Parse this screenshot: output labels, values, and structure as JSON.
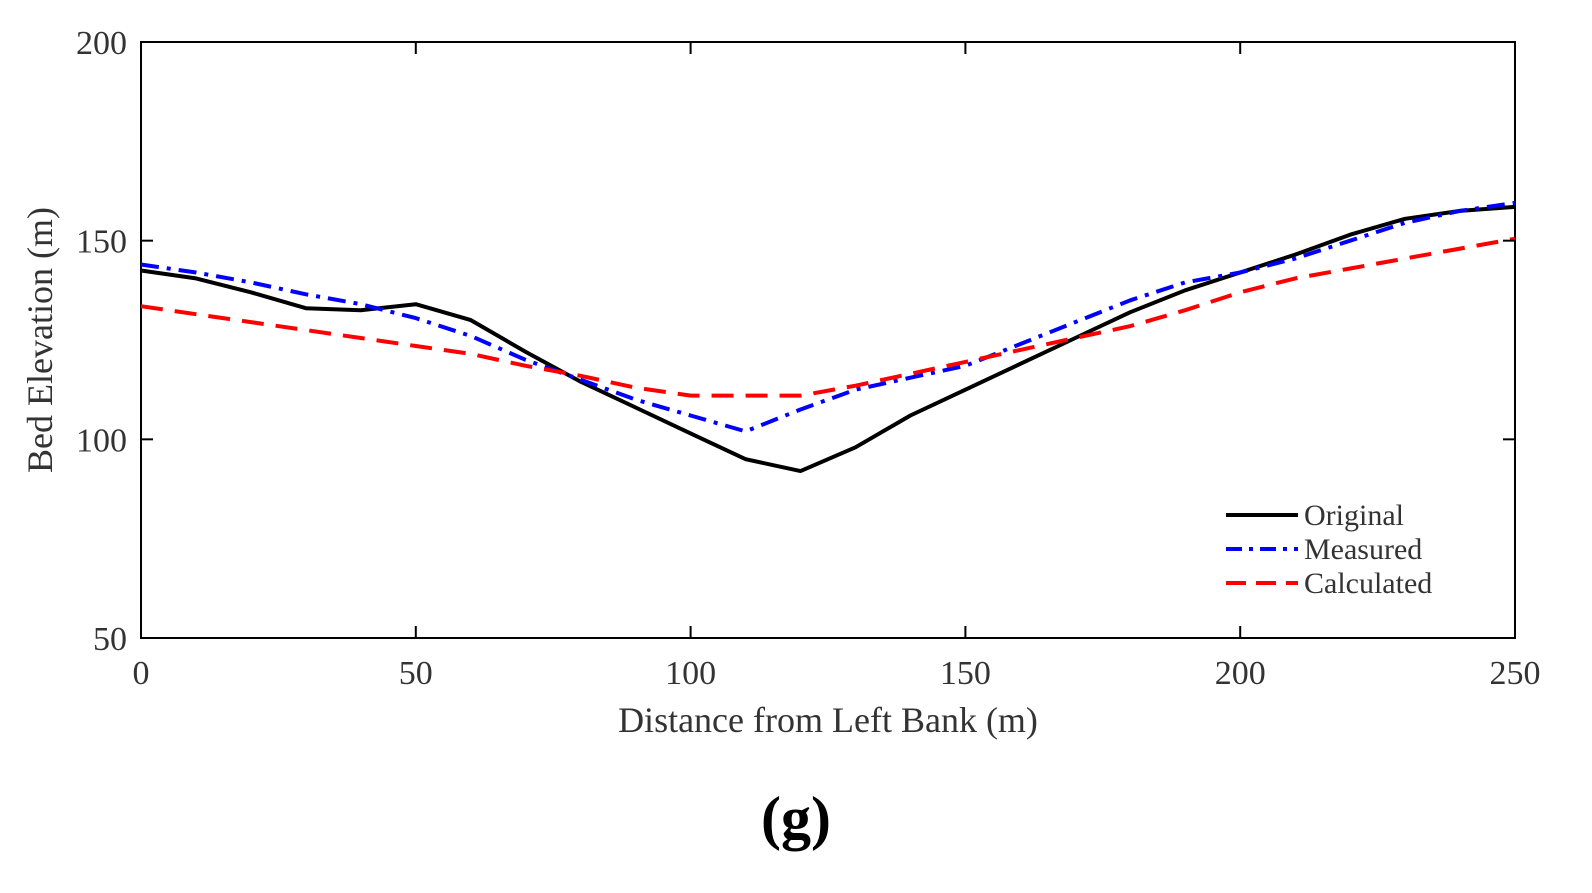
{
  "panel_label": "(g)",
  "chart_data": {
    "type": "line",
    "title": "",
    "xlabel": "Distance from Left Bank (m)",
    "ylabel": "Bed Elevation (m)",
    "xlim": [
      0,
      250
    ],
    "ylim": [
      50,
      200
    ],
    "xticks": [
      0,
      50,
      100,
      150,
      200,
      250
    ],
    "yticks": [
      50,
      100,
      150,
      200
    ],
    "grid": false,
    "legend_position": "lower-right",
    "series": [
      {
        "name": "Original",
        "color": "#000000",
        "style": "solid",
        "x": [
          0,
          10,
          20,
          30,
          40,
          50,
          60,
          70,
          80,
          90,
          100,
          110,
          120,
          130,
          140,
          150,
          160,
          170,
          180,
          190,
          200,
          210,
          220,
          230,
          240,
          250
        ],
        "y": [
          142.5,
          140.5,
          137,
          133,
          132.5,
          134,
          130,
          122,
          114.5,
          108,
          101.5,
          95,
          92,
          98,
          106,
          112.5,
          119,
          125.5,
          132,
          137.5,
          142,
          146.5,
          151.5,
          155.5,
          157.5,
          158.5
        ]
      },
      {
        "name": "Measured",
        "color": "#0000ff",
        "style": "dashdot",
        "x": [
          0,
          10,
          20,
          30,
          40,
          50,
          60,
          70,
          80,
          90,
          100,
          110,
          120,
          130,
          140,
          150,
          160,
          170,
          180,
          190,
          200,
          210,
          220,
          230,
          240,
          250
        ],
        "y": [
          144,
          142,
          139.5,
          136.5,
          134,
          130.5,
          126,
          120,
          115,
          110,
          106,
          102,
          107.5,
          112.5,
          115.5,
          118.5,
          124,
          129.5,
          135,
          139.5,
          142,
          145.5,
          150,
          154.5,
          157.5,
          159.5
        ]
      },
      {
        "name": "Calculated",
        "color": "#ff0000",
        "style": "dashed",
        "x": [
          0,
          10,
          20,
          30,
          40,
          50,
          60,
          70,
          80,
          90,
          100,
          110,
          120,
          130,
          140,
          150,
          160,
          170,
          180,
          190,
          200,
          210,
          220,
          230,
          240,
          250
        ],
        "y": [
          133.5,
          131.5,
          129.5,
          127.5,
          125.5,
          123.5,
          121.5,
          118.5,
          116,
          113,
          111,
          111,
          111,
          113.5,
          116.5,
          119.5,
          122.5,
          125.5,
          128.5,
          132.5,
          137,
          140.5,
          143,
          145.5,
          148,
          150.5
        ]
      }
    ]
  }
}
